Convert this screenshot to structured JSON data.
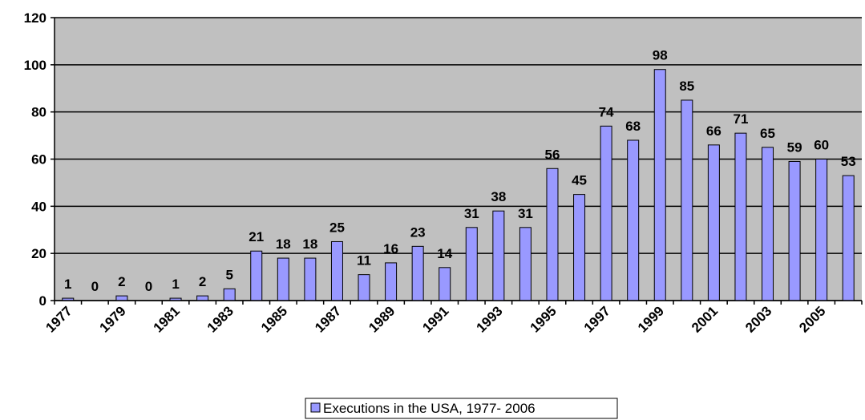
{
  "chart_data": {
    "type": "bar",
    "categories": [
      "1977",
      null,
      "1979",
      null,
      "1981",
      null,
      "1983",
      null,
      "1985",
      null,
      "1987",
      null,
      "1989",
      null,
      "1991",
      null,
      "1993",
      null,
      "1995",
      null,
      "1997",
      null,
      "1999",
      null,
      "2001",
      null,
      "2003",
      null,
      "2005",
      null
    ],
    "series": [
      {
        "name": "Executions in the USA, 1977- 2006",
        "color": "#9999ff",
        "values": [
          1,
          0,
          2,
          0,
          1,
          2,
          5,
          21,
          18,
          18,
          25,
          11,
          16,
          23,
          14,
          31,
          38,
          31,
          56,
          45,
          74,
          68,
          98,
          85,
          66,
          71,
          65,
          59,
          60,
          53
        ]
      }
    ],
    "ylim": [
      0,
      120
    ],
    "yticks": [
      0,
      20,
      40,
      60,
      80,
      100,
      120
    ],
    "grid": true,
    "legend": "bottom"
  }
}
